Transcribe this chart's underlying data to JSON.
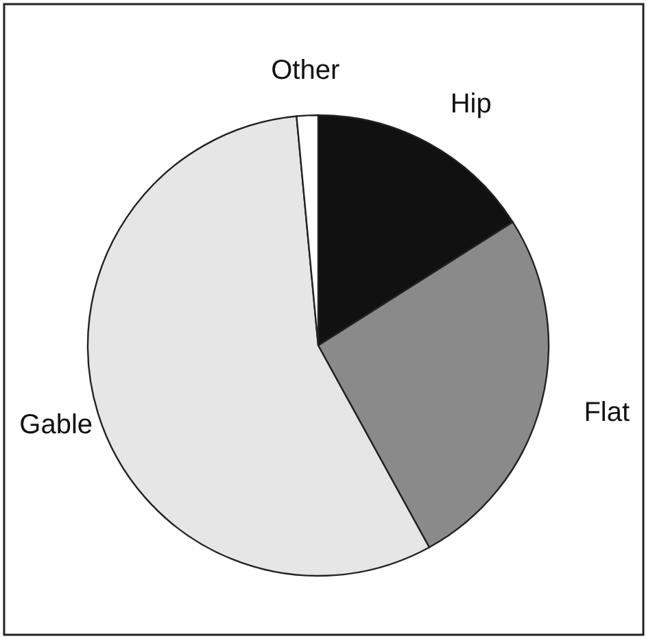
{
  "chart_data": {
    "type": "pie",
    "categories": [
      "Hip",
      "Flat",
      "Gable",
      "Other"
    ],
    "values": [
      16,
      26,
      56.5,
      1.5
    ],
    "colors": [
      "#111111",
      "#8a8a8a",
      "#e6e6e6",
      "#ffffff"
    ]
  }
}
